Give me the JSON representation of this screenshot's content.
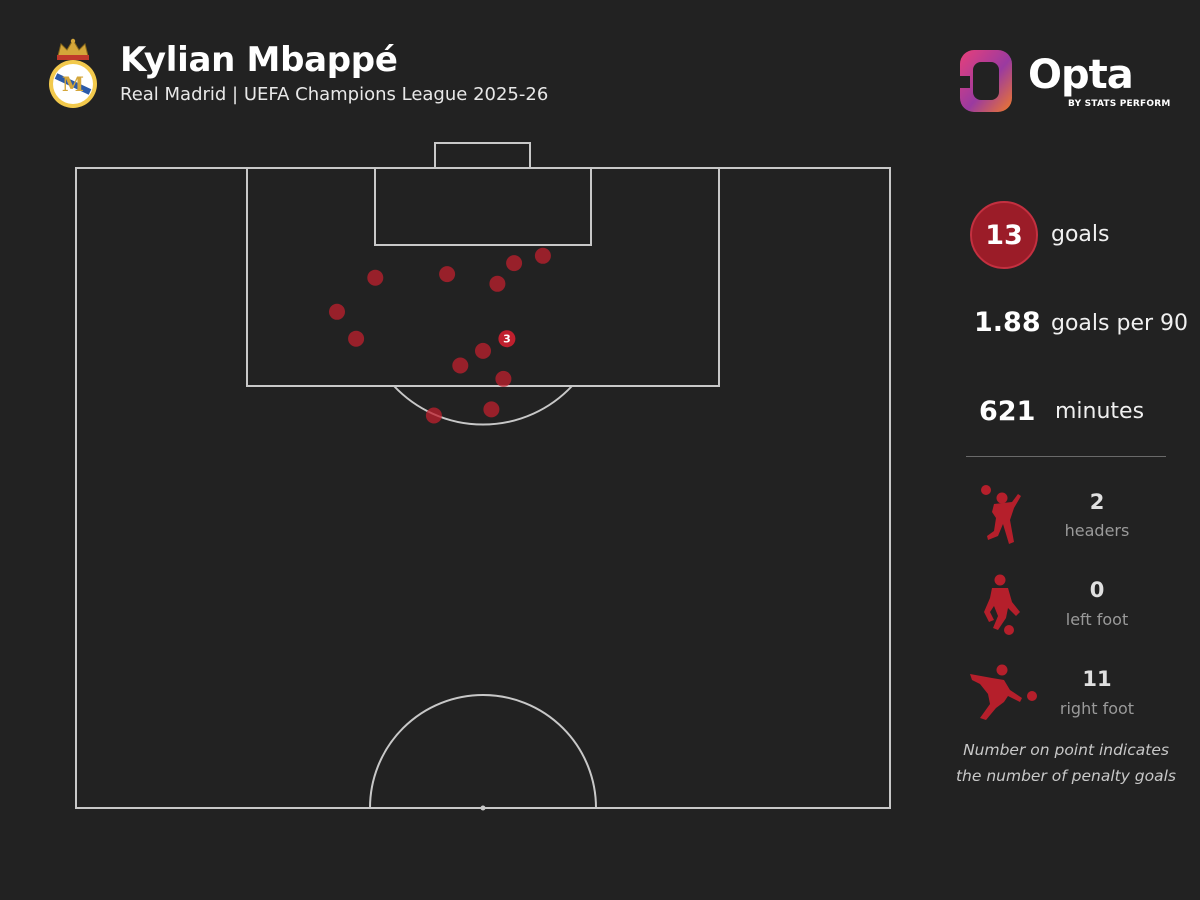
{
  "header": {
    "player_name": "Kylian Mbappé",
    "subtitle": "Real Madrid | UEFA Champions League 2025-26",
    "crest_icon": "real-madrid-crest-icon"
  },
  "brand": {
    "name": "Opta",
    "tagline": "BY STATS PERFORM",
    "logo_icon": "opta-logo-icon",
    "logo_colors": [
      "#e8407a",
      "#f07a2a",
      "#9a3aa0"
    ]
  },
  "stats": {
    "goals": {
      "value": "13",
      "label": "goals"
    },
    "goals_per_90": {
      "value": "1.88",
      "label": "goals per 90"
    },
    "minutes": {
      "value": "621",
      "label": "minutes"
    }
  },
  "goal_types": [
    {
      "count": "2",
      "label": "headers",
      "icon": "header-player-icon"
    },
    {
      "count": "0",
      "label": "left foot",
      "icon": "left-foot-player-icon"
    },
    {
      "count": "11",
      "label": "right foot",
      "icon": "right-foot-player-icon"
    }
  ],
  "footnote": {
    "line1": "Number on point indicates",
    "line2": "the number of penalty goals"
  },
  "colors": {
    "background": "#222222",
    "pitch_lines": "#c8c8c8",
    "goal_marker": "#c0202e",
    "accent": "#9b1c28"
  },
  "chart_data": {
    "type": "scatter",
    "description_units": "pitch metres: x across (0-68), y from goal line (0-52.5)",
    "xlim": [
      0,
      68
    ],
    "ylim": [
      0,
      52.5
    ],
    "points": [
      {
        "x": 36.6,
        "y": 7.8
      },
      {
        "x": 39.0,
        "y": 7.2
      },
      {
        "x": 31.0,
        "y": 8.7
      },
      {
        "x": 25.0,
        "y": 9.0
      },
      {
        "x": 35.2,
        "y": 9.5
      },
      {
        "x": 21.8,
        "y": 11.8
      },
      {
        "x": 23.4,
        "y": 14.0
      },
      {
        "x": 34.0,
        "y": 15.0
      },
      {
        "x": 36.0,
        "y": 14.0,
        "label": "3"
      },
      {
        "x": 32.1,
        "y": 16.2
      },
      {
        "x": 35.7,
        "y": 17.3
      },
      {
        "x": 29.9,
        "y": 20.3
      },
      {
        "x": 34.7,
        "y": 19.8
      }
    ]
  }
}
